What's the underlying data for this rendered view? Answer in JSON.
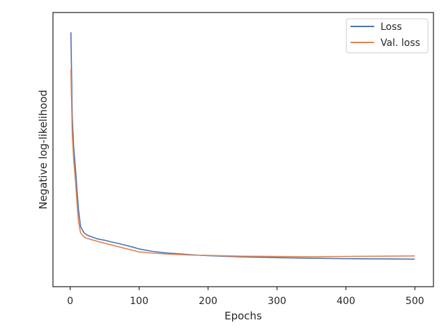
{
  "chart_data": {
    "type": "line",
    "title": "",
    "xlabel": "Epochs",
    "ylabel": "Negative log-likelihood",
    "xlim": [
      -25,
      527
    ],
    "ylim": [
      0,
      1
    ],
    "x_ticks": [
      0,
      100,
      200,
      300,
      400,
      500
    ],
    "x_tick_labels": [
      "0",
      "100",
      "200",
      "300",
      "400",
      "500"
    ],
    "y_ticks_visible": false,
    "grid": false,
    "legend": "top-right",
    "series": [
      {
        "name": "Loss",
        "color": "#4c72b0",
        "x": [
          1,
          3,
          5,
          8,
          10,
          12,
          15,
          20,
          25,
          30,
          40,
          50,
          60,
          70,
          80,
          90,
          100,
          120,
          140,
          160,
          180,
          200,
          250,
          300,
          350,
          400,
          450,
          500
        ],
        "y": [
          0.96,
          0.62,
          0.5,
          0.4,
          0.32,
          0.25,
          0.18,
          0.155,
          0.145,
          0.14,
          0.13,
          0.125,
          0.118,
          0.112,
          0.105,
          0.098,
          0.09,
          0.08,
          0.074,
          0.07,
          0.066,
          0.063,
          0.058,
          0.055,
          0.053,
          0.051,
          0.05,
          0.049
        ]
      },
      {
        "name": "Val. loss",
        "color": "#dd8452",
        "x": [
          1,
          3,
          5,
          8,
          10,
          12,
          15,
          20,
          25,
          30,
          40,
          50,
          60,
          70,
          80,
          90,
          100,
          120,
          140,
          160,
          180,
          200,
          250,
          300,
          350,
          400,
          450,
          500
        ],
        "y": [
          0.81,
          0.55,
          0.45,
          0.35,
          0.27,
          0.2,
          0.155,
          0.138,
          0.132,
          0.128,
          0.12,
          0.113,
          0.106,
          0.099,
          0.092,
          0.085,
          0.078,
          0.073,
          0.07,
          0.067,
          0.065,
          0.064,
          0.061,
          0.06,
          0.059,
          0.06,
          0.061,
          0.062
        ]
      }
    ]
  }
}
